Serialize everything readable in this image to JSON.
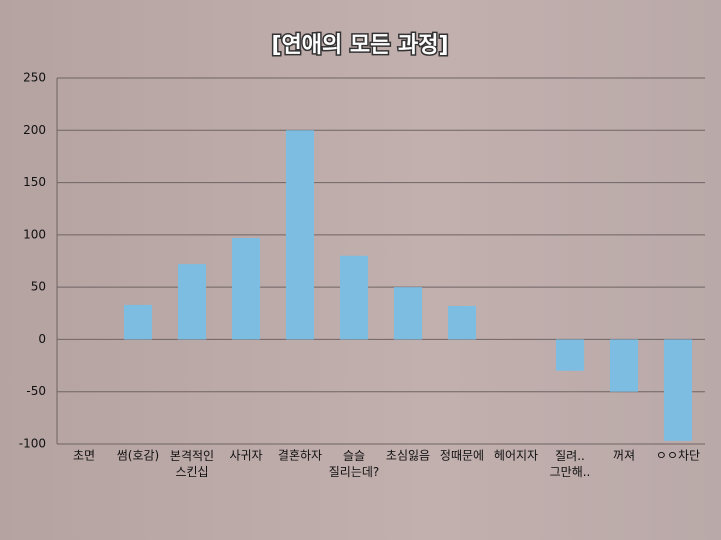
{
  "chart_data": {
    "type": "bar",
    "title": "[연애의 모든 과정]",
    "categories": [
      "초면",
      "썸(호감)",
      "본격적인\n스킨십",
      "사귀자",
      "결혼하자",
      "슬슬\n질리는데?",
      "초심잃음",
      "정때문에",
      "헤어지자",
      "질려..\n그만해..",
      "꺼져",
      "ㅇㅇ차단"
    ],
    "values": [
      0,
      33,
      72,
      97,
      200,
      80,
      50,
      32,
      0,
      -30,
      -50,
      -97
    ],
    "color": "#7dbde2",
    "ylim": [
      -100,
      250
    ],
    "yticks": [
      -100,
      -50,
      0,
      50,
      100,
      150,
      200,
      250
    ],
    "grid": true
  }
}
